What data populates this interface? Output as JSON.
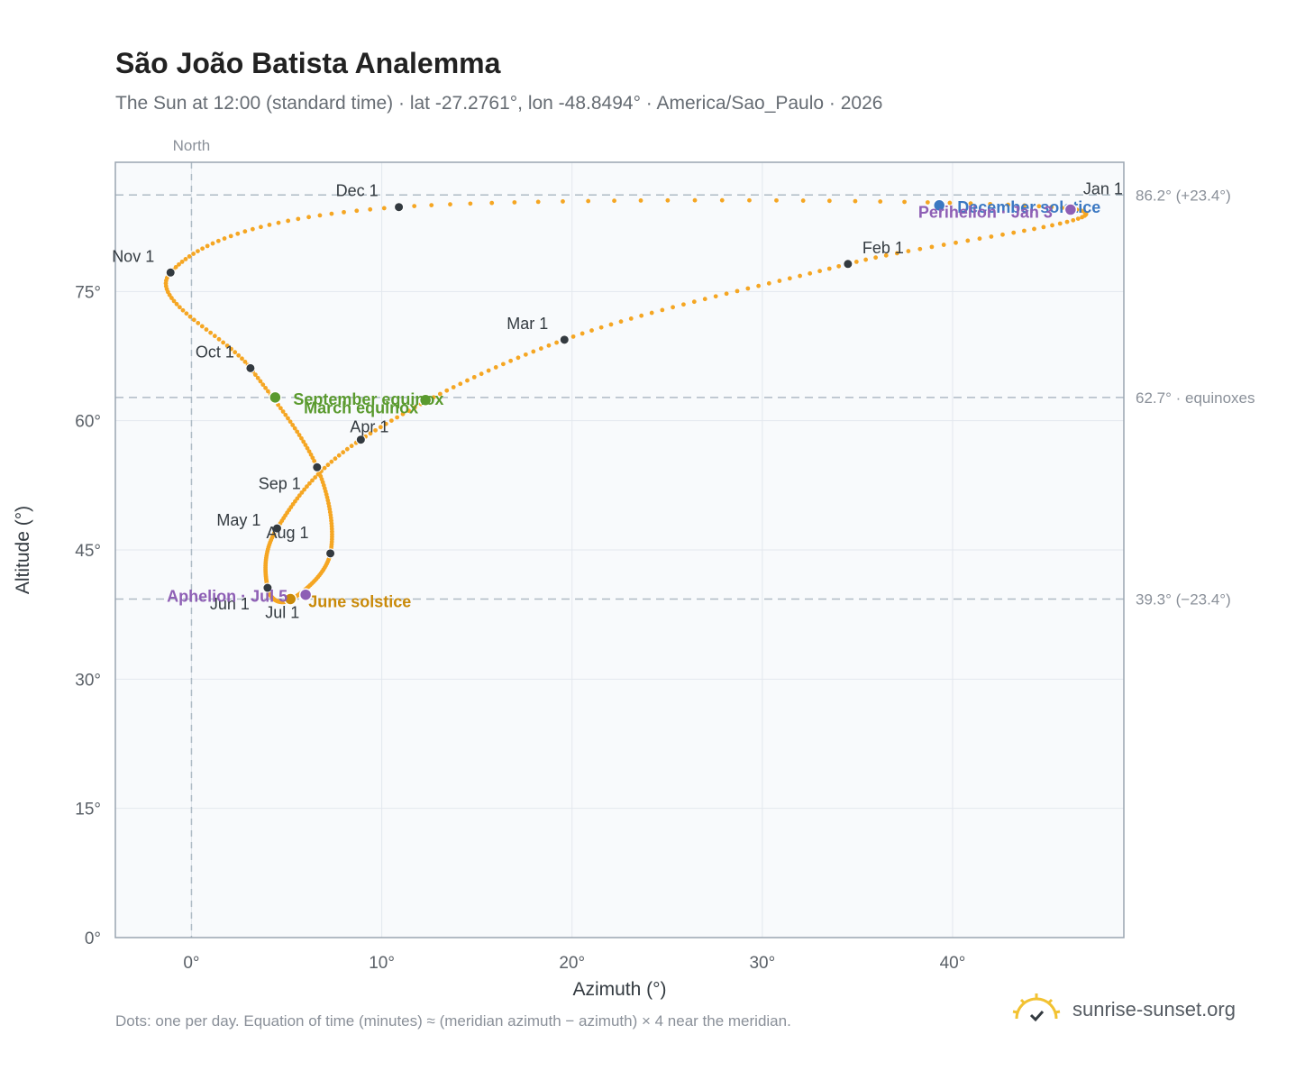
{
  "header": {
    "title": "São João Batista Analemma",
    "subtitle": "The Sun at 12:00 (standard time) · lat -27.2761°, lon -48.8494° · America/Sao_Paulo · 2026"
  },
  "footer": {
    "note": "Dots: one per day. Equation of time (minutes) ≈ (meridian azimuth − azimuth) × 4 near the meridian.",
    "brand": "sunrise-sunset.org"
  },
  "colors": {
    "curve": "#f5a623",
    "month_dot": "#333a40",
    "equinox": "#5a9a2e",
    "december": "#3b78c2",
    "june": "#c98a0a",
    "apsis": "#8e5fb5",
    "plot_bg": "#f8fafc"
  },
  "chart_data": {
    "type": "scatter",
    "title": "São João Batista Analemma",
    "xlabel": "Azimuth (°)",
    "ylabel": "Altitude (°)",
    "xlim": [
      -4,
      49
    ],
    "ylim": [
      0,
      90
    ],
    "xticks": [
      0,
      10,
      20,
      30,
      40
    ],
    "xtick_labels": [
      "0°",
      "10°",
      "20°",
      "30°",
      "40°"
    ],
    "yticks": [
      0,
      15,
      30,
      45,
      60,
      75
    ],
    "ytick_labels": [
      "0°",
      "15°",
      "30°",
      "45°",
      "60°",
      "75°"
    ],
    "grid": true,
    "north_line": {
      "x": 0,
      "label": "North"
    },
    "reference_lines": [
      {
        "y": 86.2,
        "label": "86.2° (+23.4°)"
      },
      {
        "y": 62.7,
        "label": "62.7° · equinoxes"
      },
      {
        "y": 39.3,
        "label": "39.3° (−23.4°)"
      }
    ],
    "months": [
      {
        "label": "Jan 1",
        "az": 46.2,
        "alt": 84.6
      },
      {
        "label": "Feb 1",
        "az": 34.5,
        "alt": 78.2
      },
      {
        "label": "Mar 1",
        "az": 19.6,
        "alt": 69.4
      },
      {
        "label": "Apr 1",
        "az": 8.9,
        "alt": 57.8
      },
      {
        "label": "May 1",
        "az": 4.5,
        "alt": 47.5
      },
      {
        "label": "Jun 1",
        "az": 4.0,
        "alt": 40.6
      },
      {
        "label": "Jul 1",
        "az": 5.2,
        "alt": 39.2
      },
      {
        "label": "Aug 1",
        "az": 7.3,
        "alt": 44.6
      },
      {
        "label": "Sep 1",
        "az": 6.6,
        "alt": 54.6
      },
      {
        "label": "Oct 1",
        "az": 3.1,
        "alt": 66.1
      },
      {
        "label": "Nov 1",
        "az": -1.1,
        "alt": 77.2
      },
      {
        "label": "Dec 1",
        "az": 10.9,
        "alt": 84.8
      }
    ],
    "events": [
      {
        "label": "December solstice",
        "az": 39.3,
        "alt": 85.0
      },
      {
        "label": "Perihelion · Jan 3",
        "az": 46.2,
        "alt": 84.5
      },
      {
        "label": "March equinox",
        "az": 12.3,
        "alt": 62.4
      },
      {
        "label": "September equinox",
        "az": 4.4,
        "alt": 62.7
      },
      {
        "label": "June solstice",
        "az": 5.2,
        "alt": 39.3
      },
      {
        "label": "Aphelion · Jul 5",
        "az": 6.0,
        "alt": 39.8
      }
    ]
  }
}
